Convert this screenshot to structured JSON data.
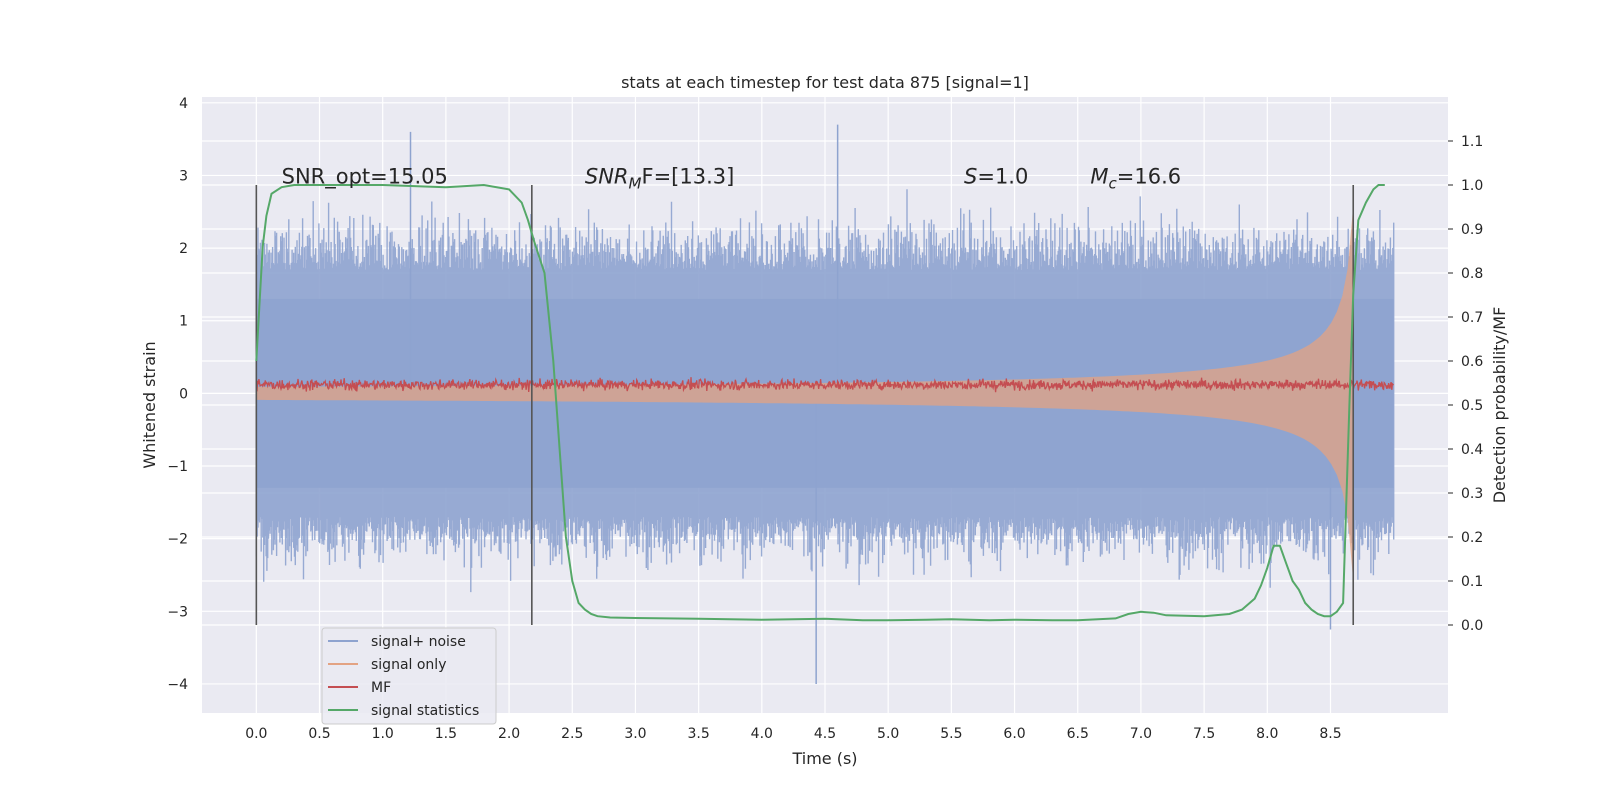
{
  "chart_data": {
    "type": "line",
    "title": "stats at each timestep for test data 875 [signal=1]",
    "xlabel": "Time (s)",
    "ylabel_left": "Whitened strain",
    "ylabel_right": "Detection probability/MF",
    "xlim": [
      -0.43,
      9.43
    ],
    "ylim_left": [
      -4.4,
      4.08
    ],
    "ylim_right": [
      -0.2,
      1.2
    ],
    "xticks": [
      "0.0",
      "0.5",
      "1.0",
      "1.5",
      "2.0",
      "2.5",
      "3.0",
      "3.5",
      "4.0",
      "4.5",
      "5.0",
      "5.5",
      "6.0",
      "6.5",
      "7.0",
      "7.5",
      "8.0",
      "8.5"
    ],
    "xtick_values": [
      0.0,
      0.5,
      1.0,
      1.5,
      2.0,
      2.5,
      3.0,
      3.5,
      4.0,
      4.5,
      5.0,
      5.5,
      6.0,
      6.5,
      7.0,
      7.5,
      8.0,
      8.5
    ],
    "yticks_left": [
      "−4",
      "−3",
      "−2",
      "−1",
      "0",
      "1",
      "2",
      "3",
      "4"
    ],
    "ytick_values_left": [
      -4,
      -3,
      -2,
      -1,
      0,
      1,
      2,
      3,
      4
    ],
    "yticks_right": [
      "0.0",
      "0.1",
      "0.2",
      "0.3",
      "0.4",
      "0.5",
      "0.6",
      "0.7",
      "0.8",
      "0.9",
      "1.0",
      "1.1"
    ],
    "ytick_values_right": [
      0.0,
      0.1,
      0.2,
      0.3,
      0.4,
      0.5,
      0.6,
      0.7,
      0.8,
      0.9,
      1.0,
      1.1
    ],
    "grid": true,
    "legend_position": "lower-left",
    "annotations": [
      {
        "pre": "SNR_opt=15.05",
        "sub": "",
        "post": "",
        "italic": false,
        "x": 0.2,
        "y": 3.0
      },
      {
        "pre": "SNR",
        "sub": "M",
        "post": "F=[13.3]",
        "italic_pre": true,
        "x": 2.6,
        "y": 3.0
      },
      {
        "pre": "S",
        "sub": "",
        "post": "=1.0",
        "italic_pre": true,
        "x": 5.6,
        "y": 3.0
      },
      {
        "pre": "M",
        "sub": "c",
        "post": "=16.6",
        "italic_pre": true,
        "x": 6.6,
        "y": 3.0
      }
    ],
    "vlines": [
      0.0,
      2.18,
      8.68
    ],
    "series": [
      {
        "name": "signal+ noise",
        "color": "#8ea3cf",
        "kind": "noise",
        "x_range": [
          0.0,
          9.0
        ],
        "approx_envelope": [
          -2.5,
          2.5
        ],
        "peaks": [
          {
            "x": 4.6,
            "y": 3.7
          },
          {
            "x": 4.43,
            "y": -4.0
          },
          {
            "x": 1.22,
            "y": 3.6
          },
          {
            "x": 8.5,
            "y": -3.25
          }
        ]
      },
      {
        "name": "signal only",
        "color": "#e3a383",
        "kind": "chirp",
        "x_range": [
          0.0,
          8.68
        ],
        "amplitude_at_end": 2.0
      },
      {
        "name": "MF",
        "color": "#c44e52",
        "kind": "mf",
        "x_range": [
          0.0,
          9.0
        ],
        "center": 0.12,
        "spread": 0.12
      },
      {
        "name": "signal statistics",
        "color": "#55a868",
        "axis": "right",
        "x": [
          0.0,
          0.05,
          0.08,
          0.12,
          0.2,
          0.3,
          0.5,
          1.0,
          1.5,
          1.8,
          2.0,
          2.1,
          2.15,
          2.2,
          2.28,
          2.35,
          2.4,
          2.45,
          2.5,
          2.55,
          2.6,
          2.65,
          2.7,
          2.8,
          3.0,
          3.5,
          4.0,
          4.5,
          4.8,
          5.0,
          5.3,
          5.5,
          5.8,
          6.0,
          6.3,
          6.5,
          6.8,
          6.9,
          7.0,
          7.1,
          7.2,
          7.5,
          7.7,
          7.8,
          7.9,
          7.95,
          8.0,
          8.05,
          8.1,
          8.15,
          8.2,
          8.25,
          8.3,
          8.35,
          8.4,
          8.45,
          8.5,
          8.55,
          8.6,
          8.65,
          8.68,
          8.72,
          8.78,
          8.84,
          8.88,
          8.9,
          8.93
        ],
        "y": [
          0.6,
          0.86,
          0.93,
          0.98,
          0.995,
          1.0,
          1.0,
          1.0,
          0.995,
          1.0,
          0.99,
          0.96,
          0.92,
          0.87,
          0.8,
          0.6,
          0.4,
          0.2,
          0.1,
          0.05,
          0.035,
          0.025,
          0.02,
          0.017,
          0.016,
          0.014,
          0.012,
          0.014,
          0.011,
          0.011,
          0.012,
          0.013,
          0.011,
          0.012,
          0.011,
          0.011,
          0.015,
          0.025,
          0.03,
          0.028,
          0.022,
          0.02,
          0.025,
          0.035,
          0.06,
          0.09,
          0.13,
          0.18,
          0.18,
          0.14,
          0.1,
          0.08,
          0.05,
          0.035,
          0.025,
          0.02,
          0.02,
          0.03,
          0.05,
          0.5,
          0.75,
          0.92,
          0.96,
          0.99,
          1.0,
          1.0,
          1.0
        ]
      }
    ]
  }
}
